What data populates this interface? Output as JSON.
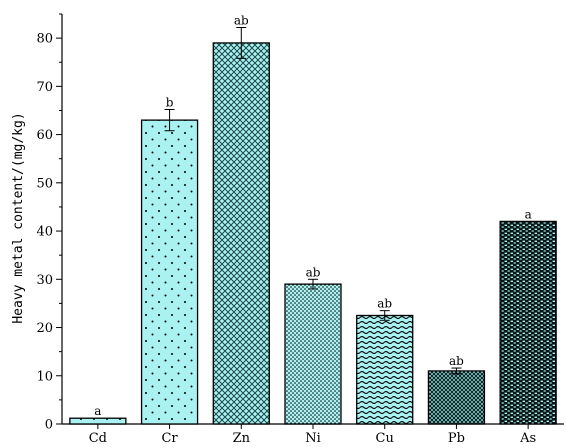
{
  "chart_data": {
    "type": "bar",
    "title": "",
    "xlabel": "",
    "ylabel": "Heavy metal content/(mg/kg)",
    "ylim": [
      0,
      85
    ],
    "yticks": [
      0,
      10,
      20,
      30,
      40,
      50,
      60,
      70,
      80
    ],
    "grid": false,
    "categories": [
      "Cd",
      "Cr",
      "Zn",
      "Ni",
      "Cu",
      "Pb",
      "As"
    ],
    "values": [
      1.2,
      63,
      79,
      29,
      22.5,
      11,
      42
    ],
    "errors": [
      0,
      2.2,
      3.2,
      1.0,
      1.0,
      0.6,
      0
    ],
    "significance_labels": [
      "a",
      "b",
      "ab",
      "ab",
      "ab",
      "ab",
      "a"
    ],
    "bar_fill": "#aaf2f2",
    "bar_patterns": [
      "sparse-dots",
      "sparse-dots",
      "crosshatch",
      "dense-dots",
      "waves",
      "crosshatch-dense",
      "dark-brick"
    ],
    "bar_edge_color": "#000000"
  }
}
